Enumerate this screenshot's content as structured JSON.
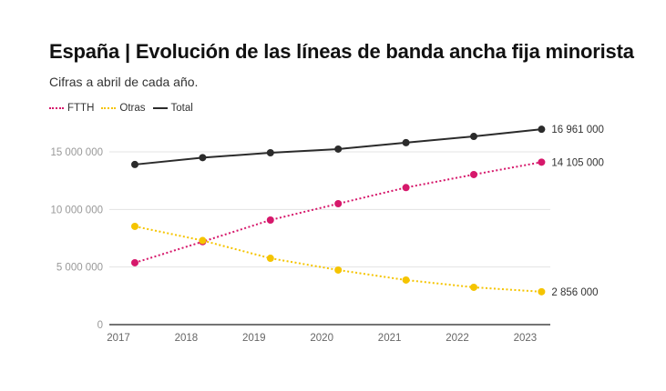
{
  "chart_data": {
    "type": "line",
    "title": "España | Evolución de las líneas de banda ancha fija minorista",
    "subtitle": "Cifras a abril de cada año.",
    "xlabel": "",
    "ylabel": "",
    "x": [
      2017,
      2018,
      2019,
      2020,
      2021,
      2022,
      2023
    ],
    "x_tick_labels": [
      "2017",
      "2018",
      "2019",
      "2020",
      "2021",
      "2022",
      "2023"
    ],
    "y_ticks": [
      0,
      5000000,
      10000000,
      15000000
    ],
    "y_tick_labels": [
      "0",
      "5 000 000",
      "10 000 000",
      "15 000 000"
    ],
    "ylim": [
      0,
      17500000
    ],
    "grid": true,
    "legend_position": "top-left",
    "series": [
      {
        "name": "FTTH",
        "color": "#d6186b",
        "style": "dotted",
        "values": [
          5370000,
          7200000,
          9080000,
          10500000,
          11900000,
          13030000,
          14105000
        ],
        "end_label": "14 105 000"
      },
      {
        "name": "Otras",
        "color": "#f5c400",
        "style": "dotted",
        "values": [
          8530000,
          7300000,
          5760000,
          4740000,
          3870000,
          3240000,
          2856000
        ],
        "end_label": "2 856 000"
      },
      {
        "name": "Total",
        "color": "#2b2b2b",
        "style": "solid",
        "values": [
          13900000,
          14500000,
          14920000,
          15240000,
          15800000,
          16340000,
          16961000
        ],
        "end_label": "16 961 000"
      }
    ]
  }
}
